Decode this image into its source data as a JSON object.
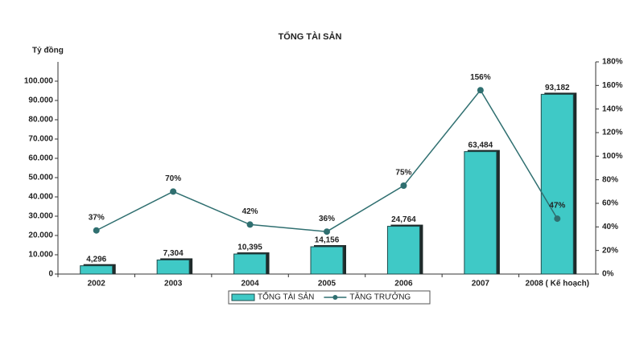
{
  "chart_data": {
    "type": "bar",
    "title": "TỔNG TÀI SẢN",
    "y_label": "Tỷ đồng",
    "categories": [
      "2002",
      "2003",
      "2004",
      "2005",
      "2006",
      "2007",
      "2008 ( Kế hoạch)"
    ],
    "series": [
      {
        "name": "TỔNG TÀI SẢN",
        "type": "bar",
        "color": "#3fc9c6",
        "values": [
          4296,
          7304,
          10395,
          14156,
          24764,
          63484,
          93182
        ],
        "value_labels": [
          "4,296",
          "7,304",
          "10,395",
          "14,156",
          "24,764",
          "63,484",
          "93,182"
        ]
      },
      {
        "name": "TĂNG TRƯỞNG",
        "type": "line",
        "axis": "y2",
        "color": "#2f6f70",
        "values": [
          37,
          70,
          42,
          36,
          75,
          156,
          47
        ],
        "value_labels": [
          "37%",
          "70%",
          "42%",
          "36%",
          "75%",
          "156%",
          "47%"
        ]
      }
    ],
    "ylim": [
      0,
      110000
    ],
    "yticks": [
      0,
      {
        "value": 10000,
        "label": "10.000"
      },
      {
        "value": 20000,
        "label": "20.000"
      },
      {
        "value": 30000,
        "label": "30.000"
      },
      {
        "value": 40000,
        "label": "40.000"
      },
      {
        "value": 50000,
        "label": "50.000"
      },
      {
        "value": 60000,
        "label": "60.000"
      },
      {
        "value": 70000,
        "label": "70.000"
      },
      {
        "value": 80000,
        "label": "80.000"
      },
      {
        "value": 90000,
        "label": "90.000"
      },
      {
        "value": 100000,
        "label": "100.000"
      }
    ],
    "y2lim": [
      0,
      180
    ],
    "y2ticks": [
      {
        "value": 0,
        "label": "0%"
      },
      {
        "value": 20,
        "label": "20%"
      },
      {
        "value": 40,
        "label": "40%"
      },
      {
        "value": 60,
        "label": "60%"
      },
      {
        "value": 80,
        "label": "80%"
      },
      {
        "value": 100,
        "label": "100%"
      },
      {
        "value": 120,
        "label": "120%"
      },
      {
        "value": 140,
        "label": "140%"
      },
      {
        "value": 160,
        "label": "160%"
      },
      {
        "value": 180,
        "label": "180%"
      }
    ],
    "grid": false,
    "legend": "bottom"
  }
}
